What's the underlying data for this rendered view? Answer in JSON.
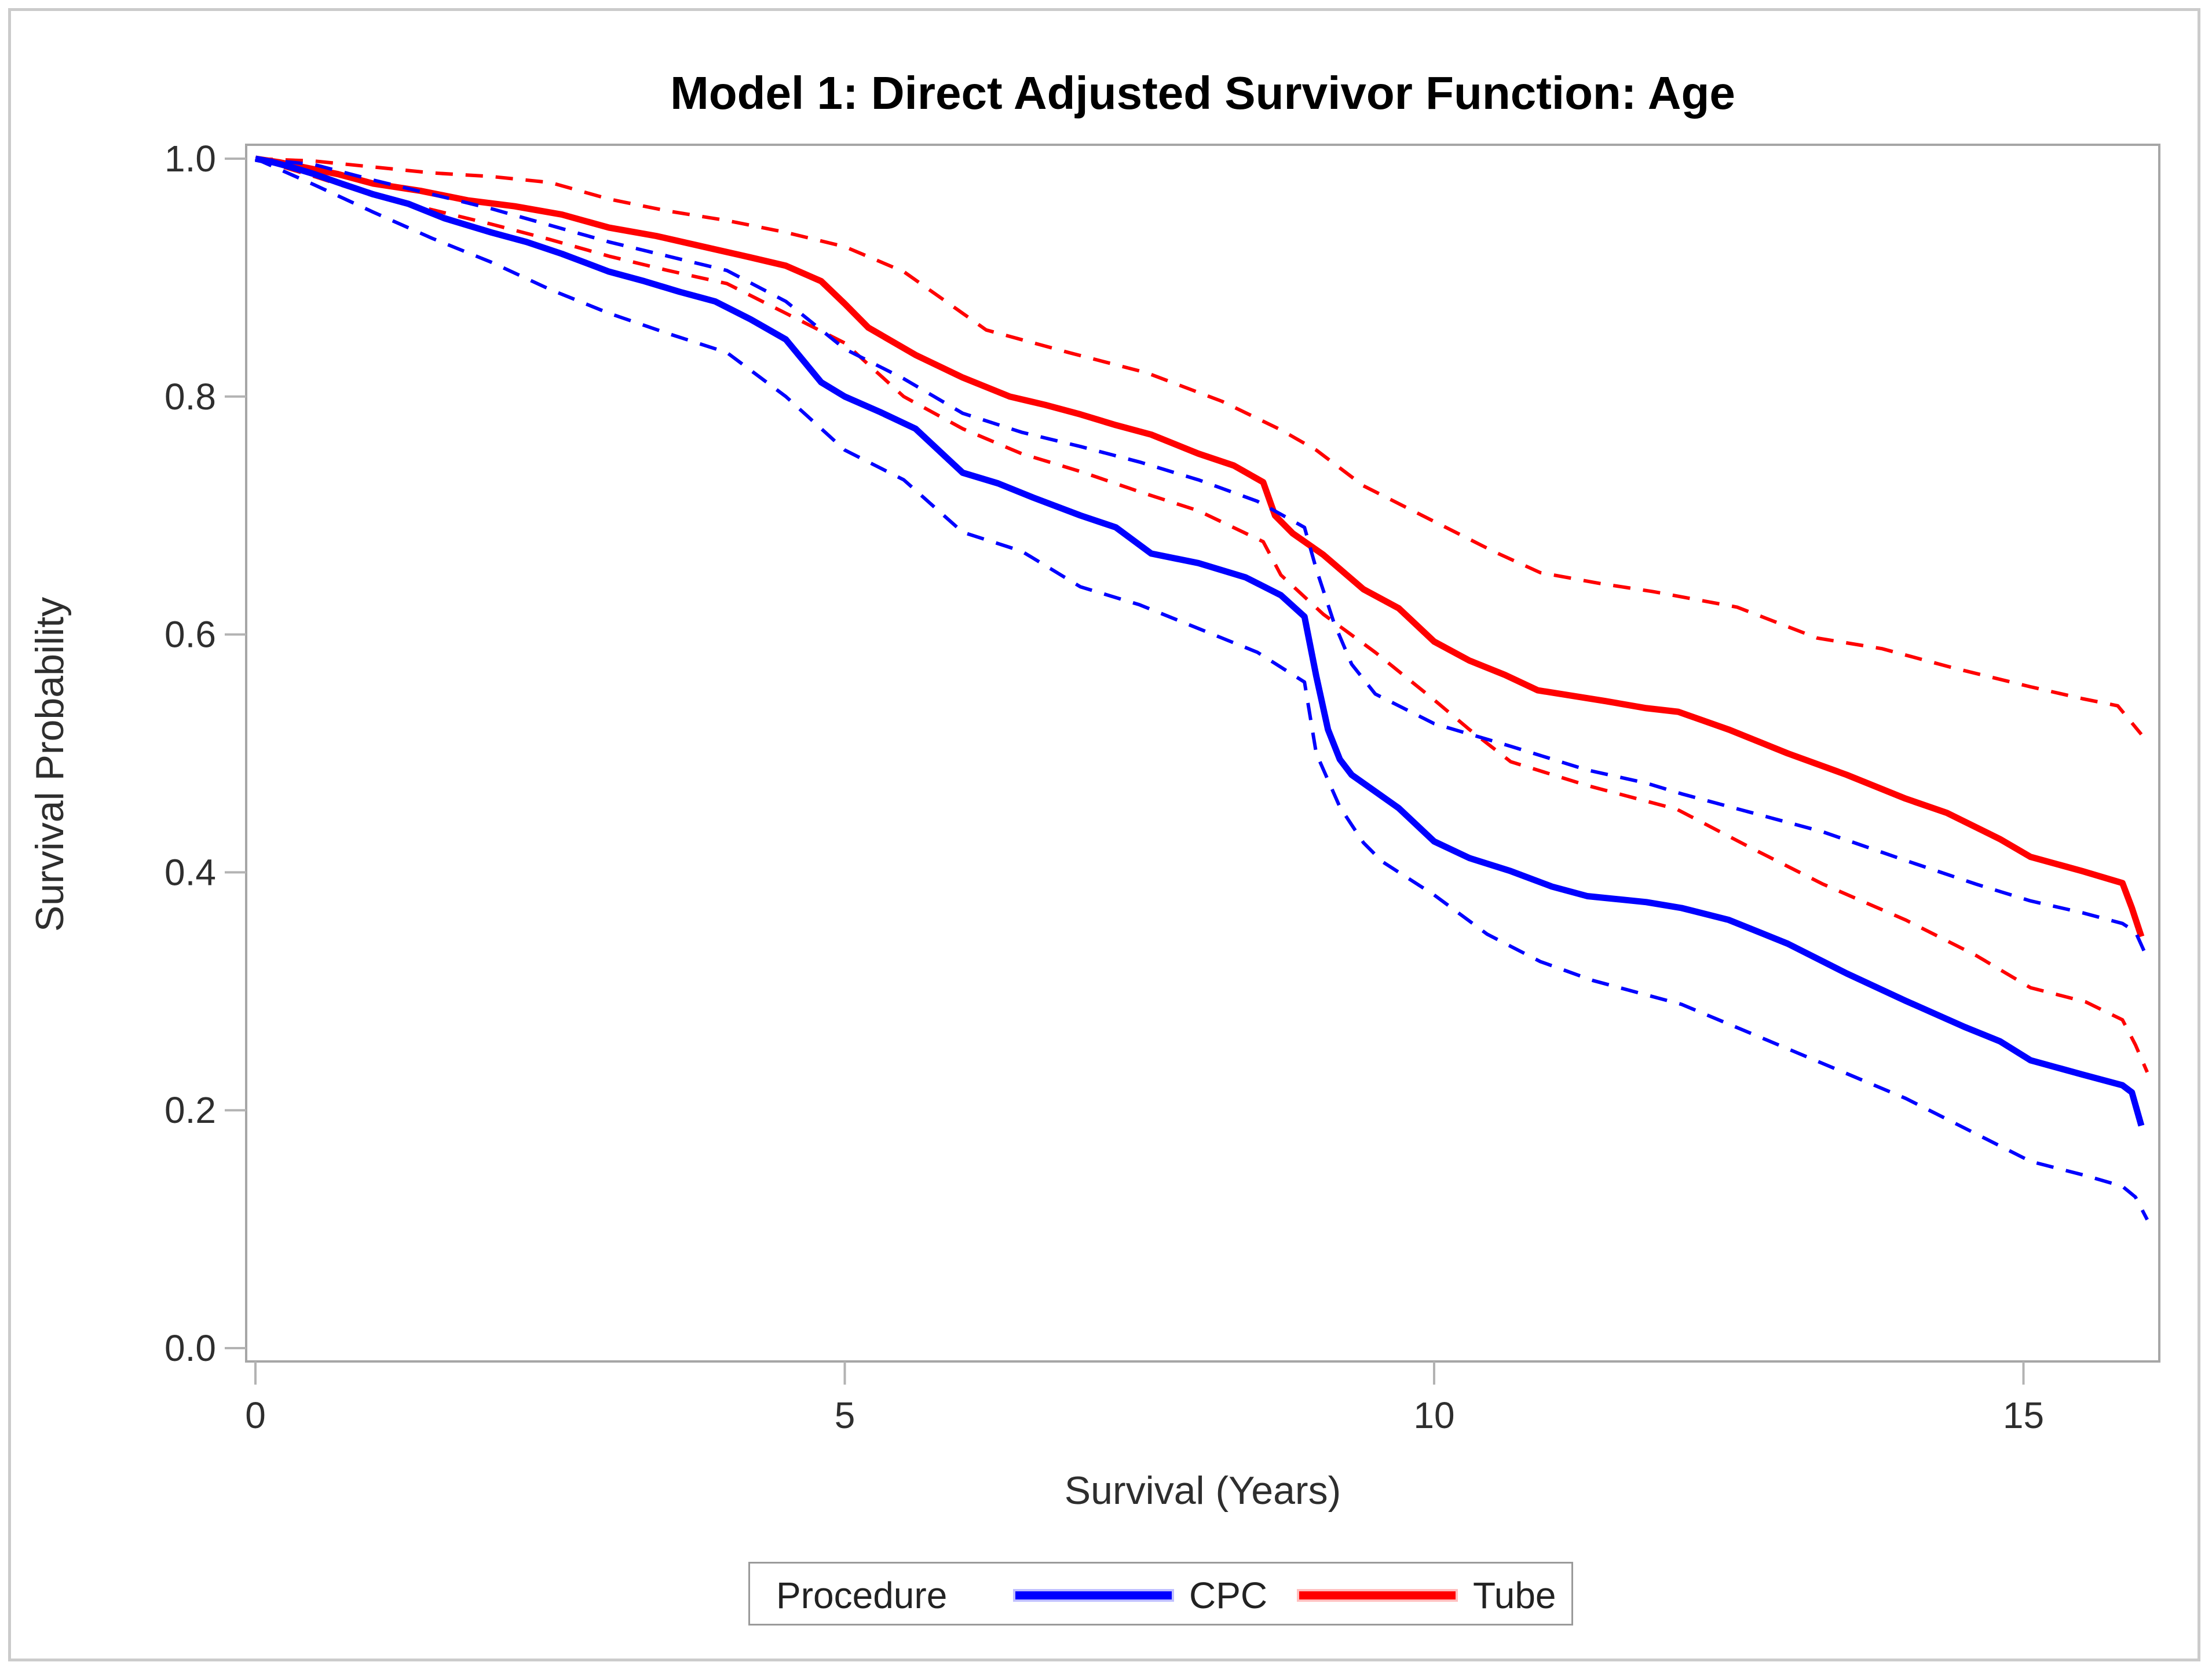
{
  "figure": {
    "title": "Model 1: Direct Adjusted Survivor Function: Age"
  },
  "axes": {
    "x_label": "Survival (Years)",
    "y_label": "Survival Probability",
    "x_ticks": [
      "0",
      "5",
      "10",
      "15"
    ],
    "x_tick_values": [
      0,
      5,
      10,
      15
    ],
    "y_ticks": [
      "1.0",
      "0.8",
      "0.6",
      "0.4",
      "0.2",
      "0.0"
    ],
    "y_tick_values": [
      1.0,
      0.8,
      0.6,
      0.4,
      0.2,
      0.0
    ]
  },
  "legend": {
    "title": "Procedure",
    "items": [
      {
        "label": "CPC",
        "color": "#0000ff"
      },
      {
        "label": "Tube",
        "color": "#ff0000"
      }
    ]
  },
  "colors": {
    "cpc": "#0000ff",
    "tube": "#ff0000",
    "frame": "#a6a6a6",
    "tick": "#b3b3b3",
    "outer_border": "#cbcbcb",
    "text": "#2e2e2e"
  },
  "chart_data": {
    "type": "line",
    "title": "Model 1: Direct Adjusted Survivor Function: Age",
    "xlabel": "Survival (Years)",
    "ylabel": "Survival Probability",
    "xlim": [
      0,
      16.3
    ],
    "ylim": [
      0.0,
      1.0
    ],
    "grid": false,
    "legend_position": "bottom",
    "series": [
      {
        "name": "Tube upper 95% CI",
        "color": "#ff0000",
        "style": "dashed",
        "width": 6,
        "points": [
          [
            0,
            1.0
          ],
          [
            0.5,
            0.998
          ],
          [
            1,
            0.993
          ],
          [
            1.5,
            0.988
          ],
          [
            2,
            0.985
          ],
          [
            2.5,
            0.98
          ],
          [
            3,
            0.966
          ],
          [
            3.5,
            0.956
          ],
          [
            4,
            0.948
          ],
          [
            4.5,
            0.938
          ],
          [
            5,
            0.926
          ],
          [
            5.5,
            0.905
          ],
          [
            6,
            0.87
          ],
          [
            6.2,
            0.856
          ],
          [
            6.9,
            0.837
          ],
          [
            7.56,
            0.82
          ],
          [
            8.2,
            0.796
          ],
          [
            8.7,
            0.772
          ],
          [
            9,
            0.755
          ],
          [
            9.4,
            0.725
          ],
          [
            10,
            0.695
          ],
          [
            10.5,
            0.67
          ],
          [
            10.9,
            0.652
          ],
          [
            11.4,
            0.643
          ],
          [
            11.86,
            0.636
          ],
          [
            12.57,
            0.623
          ],
          [
            13.25,
            0.597
          ],
          [
            13.8,
            0.588
          ],
          [
            14.4,
            0.572
          ],
          [
            15.06,
            0.556
          ],
          [
            15.5,
            0.546
          ],
          [
            15.8,
            0.54
          ],
          [
            15.9,
            0.528
          ],
          [
            16.0,
            0.516
          ]
        ]
      },
      {
        "name": "Tube (solid)",
        "color": "#ff0000",
        "style": "solid",
        "width": 11,
        "points": [
          [
            0,
            1.0
          ],
          [
            0.2,
            0.997
          ],
          [
            0.4,
            0.993
          ],
          [
            0.7,
            0.987
          ],
          [
            1,
            0.979
          ],
          [
            1.4,
            0.973
          ],
          [
            1.8,
            0.965
          ],
          [
            2.2,
            0.96
          ],
          [
            2.6,
            0.953
          ],
          [
            3,
            0.942
          ],
          [
            3.4,
            0.935
          ],
          [
            3.8,
            0.926
          ],
          [
            4.2,
            0.917
          ],
          [
            4.5,
            0.91
          ],
          [
            4.8,
            0.897
          ],
          [
            5,
            0.878
          ],
          [
            5.2,
            0.858
          ],
          [
            5.6,
            0.835
          ],
          [
            6,
            0.816
          ],
          [
            6.4,
            0.8
          ],
          [
            6.7,
            0.793
          ],
          [
            7,
            0.785
          ],
          [
            7.3,
            0.776
          ],
          [
            7.6,
            0.768
          ],
          [
            8,
            0.752
          ],
          [
            8.3,
            0.742
          ],
          [
            8.55,
            0.728
          ],
          [
            8.65,
            0.7
          ],
          [
            8.8,
            0.685
          ],
          [
            9.06,
            0.667
          ],
          [
            9.4,
            0.638
          ],
          [
            9.7,
            0.622
          ],
          [
            10,
            0.594
          ],
          [
            10.3,
            0.578
          ],
          [
            10.6,
            0.566
          ],
          [
            10.88,
            0.553
          ],
          [
            11.2,
            0.548
          ],
          [
            11.45,
            0.544
          ],
          [
            11.8,
            0.538
          ],
          [
            12.07,
            0.535
          ],
          [
            12.5,
            0.52
          ],
          [
            13,
            0.5
          ],
          [
            13.5,
            0.482
          ],
          [
            14,
            0.462
          ],
          [
            14.35,
            0.45
          ],
          [
            14.8,
            0.428
          ],
          [
            15.06,
            0.413
          ],
          [
            15.5,
            0.401
          ],
          [
            15.84,
            0.391
          ],
          [
            15.92,
            0.37
          ],
          [
            16.0,
            0.346
          ]
        ]
      },
      {
        "name": "Tube lower 95% CI",
        "color": "#ff0000",
        "style": "dashed",
        "width": 6,
        "points": [
          [
            0,
            1.0
          ],
          [
            0.5,
            0.985
          ],
          [
            1,
            0.969
          ],
          [
            1.5,
            0.957
          ],
          [
            2,
            0.945
          ],
          [
            2.5,
            0.932
          ],
          [
            3,
            0.918
          ],
          [
            3.5,
            0.906
          ],
          [
            4,
            0.895
          ],
          [
            4.5,
            0.87
          ],
          [
            5,
            0.845
          ],
          [
            5.5,
            0.8
          ],
          [
            6,
            0.773
          ],
          [
            6.5,
            0.752
          ],
          [
            7,
            0.737
          ],
          [
            7.5,
            0.72
          ],
          [
            8,
            0.704
          ],
          [
            8.55,
            0.678
          ],
          [
            8.7,
            0.65
          ],
          [
            9.06,
            0.617
          ],
          [
            9.5,
            0.585
          ],
          [
            10,
            0.545
          ],
          [
            10.3,
            0.52
          ],
          [
            10.65,
            0.493
          ],
          [
            11.3,
            0.473
          ],
          [
            12.06,
            0.453
          ],
          [
            12.7,
            0.42
          ],
          [
            13.3,
            0.39
          ],
          [
            14,
            0.36
          ],
          [
            14.6,
            0.33
          ],
          [
            15.06,
            0.303
          ],
          [
            15.53,
            0.291
          ],
          [
            15.84,
            0.276
          ],
          [
            15.95,
            0.255
          ],
          [
            16.05,
            0.232
          ]
        ]
      },
      {
        "name": "CPC upper 95% CI",
        "color": "#0000ff",
        "style": "dashed",
        "width": 6,
        "points": [
          [
            0,
            1.0
          ],
          [
            0.5,
            0.995
          ],
          [
            1,
            0.982
          ],
          [
            1.5,
            0.97
          ],
          [
            2,
            0.958
          ],
          [
            2.5,
            0.944
          ],
          [
            3,
            0.93
          ],
          [
            3.5,
            0.918
          ],
          [
            4,
            0.906
          ],
          [
            4.5,
            0.88
          ],
          [
            5,
            0.84
          ],
          [
            5.5,
            0.815
          ],
          [
            6,
            0.786
          ],
          [
            6.5,
            0.77
          ],
          [
            7,
            0.758
          ],
          [
            7.5,
            0.745
          ],
          [
            8,
            0.73
          ],
          [
            8.5,
            0.712
          ],
          [
            8.9,
            0.69
          ],
          [
            9.0,
            0.655
          ],
          [
            9.15,
            0.61
          ],
          [
            9.3,
            0.575
          ],
          [
            9.5,
            0.55
          ],
          [
            10,
            0.525
          ],
          [
            10.65,
            0.506
          ],
          [
            11.3,
            0.486
          ],
          [
            11.8,
            0.475
          ],
          [
            12.1,
            0.466
          ],
          [
            12.7,
            0.45
          ],
          [
            13.3,
            0.434
          ],
          [
            14,
            0.41
          ],
          [
            14.6,
            0.39
          ],
          [
            15.06,
            0.376
          ],
          [
            15.5,
            0.366
          ],
          [
            15.84,
            0.357
          ],
          [
            15.95,
            0.35
          ],
          [
            16.05,
            0.328
          ]
        ]
      },
      {
        "name": "CPC (solid)",
        "color": "#0000ff",
        "style": "solid",
        "width": 11,
        "points": [
          [
            0,
            1.0
          ],
          [
            0.15,
            0.997
          ],
          [
            0.3,
            0.993
          ],
          [
            0.5,
            0.987
          ],
          [
            0.7,
            0.98
          ],
          [
            1,
            0.97
          ],
          [
            1.3,
            0.962
          ],
          [
            1.6,
            0.95
          ],
          [
            2,
            0.938
          ],
          [
            2.3,
            0.93
          ],
          [
            2.6,
            0.92
          ],
          [
            3,
            0.905
          ],
          [
            3.3,
            0.897
          ],
          [
            3.6,
            0.888
          ],
          [
            3.9,
            0.88
          ],
          [
            4.2,
            0.865
          ],
          [
            4.5,
            0.848
          ],
          [
            4.8,
            0.812
          ],
          [
            5,
            0.8
          ],
          [
            5.3,
            0.787
          ],
          [
            5.6,
            0.773
          ],
          [
            6,
            0.736
          ],
          [
            6.3,
            0.727
          ],
          [
            6.6,
            0.715
          ],
          [
            7,
            0.7
          ],
          [
            7.3,
            0.69
          ],
          [
            7.6,
            0.668
          ],
          [
            8,
            0.66
          ],
          [
            8.4,
            0.648
          ],
          [
            8.7,
            0.633
          ],
          [
            8.9,
            0.615
          ],
          [
            9.0,
            0.565
          ],
          [
            9.1,
            0.52
          ],
          [
            9.2,
            0.495
          ],
          [
            9.3,
            0.482
          ],
          [
            9.5,
            0.468
          ],
          [
            9.7,
            0.454
          ],
          [
            10,
            0.426
          ],
          [
            10.3,
            0.412
          ],
          [
            10.65,
            0.401
          ],
          [
            11,
            0.388
          ],
          [
            11.3,
            0.38
          ],
          [
            11.8,
            0.375
          ],
          [
            12.1,
            0.37
          ],
          [
            12.5,
            0.36
          ],
          [
            13,
            0.34
          ],
          [
            13.5,
            0.315
          ],
          [
            14,
            0.292
          ],
          [
            14.5,
            0.27
          ],
          [
            14.8,
            0.258
          ],
          [
            15.06,
            0.242
          ],
          [
            15.5,
            0.23
          ],
          [
            15.84,
            0.221
          ],
          [
            15.92,
            0.215
          ],
          [
            16.0,
            0.187
          ]
        ]
      },
      {
        "name": "CPC lower 95% CI",
        "color": "#0000ff",
        "style": "dashed",
        "width": 6,
        "points": [
          [
            0,
            1.0
          ],
          [
            0.5,
            0.978
          ],
          [
            1,
            0.955
          ],
          [
            1.5,
            0.933
          ],
          [
            2,
            0.913
          ],
          [
            2.5,
            0.89
          ],
          [
            3,
            0.87
          ],
          [
            3.5,
            0.853
          ],
          [
            4,
            0.837
          ],
          [
            4.5,
            0.8
          ],
          [
            5,
            0.755
          ],
          [
            5.5,
            0.73
          ],
          [
            6,
            0.686
          ],
          [
            6.5,
            0.67
          ],
          [
            7,
            0.64
          ],
          [
            7.5,
            0.625
          ],
          [
            8,
            0.605
          ],
          [
            8.5,
            0.585
          ],
          [
            8.9,
            0.56
          ],
          [
            9.0,
            0.5
          ],
          [
            9.2,
            0.455
          ],
          [
            9.4,
            0.425
          ],
          [
            9.56,
            0.409
          ],
          [
            10,
            0.381
          ],
          [
            10.45,
            0.348
          ],
          [
            10.9,
            0.325
          ],
          [
            11.35,
            0.309
          ],
          [
            11.8,
            0.297
          ],
          [
            12.1,
            0.289
          ],
          [
            12.8,
            0.26
          ],
          [
            13.4,
            0.235
          ],
          [
            14,
            0.21
          ],
          [
            14.5,
            0.185
          ],
          [
            14.8,
            0.17
          ],
          [
            15.06,
            0.157
          ],
          [
            15.53,
            0.145
          ],
          [
            15.84,
            0.136
          ],
          [
            15.95,
            0.127
          ],
          [
            16.05,
            0.108
          ]
        ]
      }
    ]
  }
}
